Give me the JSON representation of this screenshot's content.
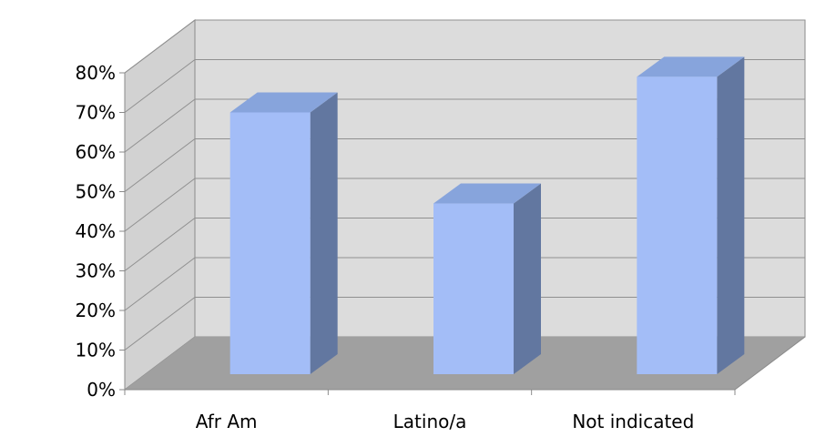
{
  "chart_data": {
    "type": "bar",
    "style": "3d-column",
    "categories": [
      "Afr Am",
      "Latino/a",
      "Not indicated"
    ],
    "values": [
      70,
      47,
      79
    ],
    "ylim": [
      0,
      80
    ],
    "yticks": [
      0,
      10,
      20,
      30,
      40,
      50,
      60,
      70,
      80
    ],
    "ytick_labels": [
      "0%",
      "10%",
      "20%",
      "30%",
      "40%",
      "50%",
      "60%",
      "70%",
      "80%"
    ],
    "title": "",
    "xlabel": "",
    "ylabel": "",
    "grid": true,
    "legend": "none",
    "colors": {
      "bar_front": "#a3bdf7",
      "bar_top": "#87a4dc",
      "bar_side": "#6277a0",
      "back_wall": "#dcdcdc",
      "side_wall": "#d2d2d2",
      "floor": "#a0a0a0",
      "gridline": "#909090",
      "axis": "#8a8a8a"
    }
  }
}
